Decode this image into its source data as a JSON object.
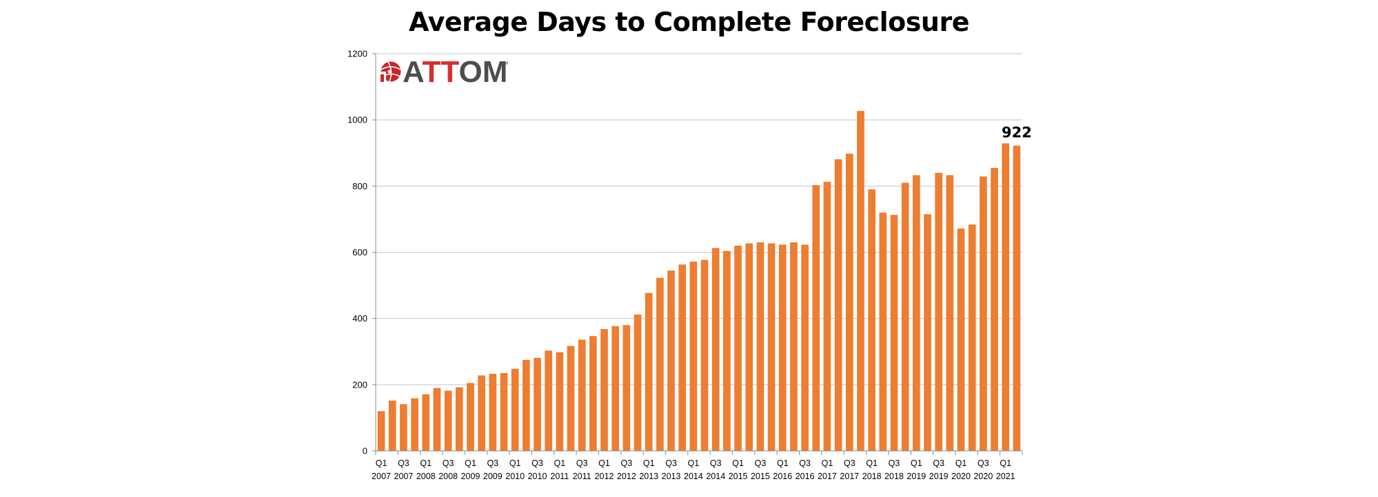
{
  "chart_data": {
    "type": "bar",
    "title": "Average Days to Complete Foreclosure",
    "xlabel": "",
    "ylabel": "",
    "ylim": [
      0,
      1200
    ],
    "yticks": [
      "0",
      "200",
      "400",
      "600",
      "800",
      "1000",
      "1200"
    ],
    "grid": true,
    "legend": "none",
    "bar_color": "#ED7D31",
    "categories": [
      "Q1 2007",
      "Q2 2007",
      "Q3 2007",
      "Q4 2007",
      "Q1 2008",
      "Q2 2008",
      "Q3 2008",
      "Q4 2008",
      "Q1 2009",
      "Q2 2009",
      "Q3 2009",
      "Q4 2009",
      "Q1 2010",
      "Q2 2010",
      "Q3 2010",
      "Q4 2010",
      "Q1 2011",
      "Q2 2011",
      "Q3 2011",
      "Q4 2011",
      "Q1 2012",
      "Q2 2012",
      "Q3 2012",
      "Q4 2012",
      "Q1 2013",
      "Q2 2013",
      "Q3 2013",
      "Q4 2013",
      "Q1 2014",
      "Q2 2014",
      "Q3 2014",
      "Q4 2014",
      "Q1 2015",
      "Q2 2015",
      "Q3 2015",
      "Q4 2015",
      "Q1 2016",
      "Q2 2016",
      "Q3 2016",
      "Q4 2016",
      "Q1 2017",
      "Q2 2017",
      "Q3 2017",
      "Q4 2017",
      "Q1 2018",
      "Q2 2018",
      "Q3 2018",
      "Q4 2018",
      "Q1 2019",
      "Q2 2019",
      "Q3 2019",
      "Q4 2019",
      "Q1 2020",
      "Q2 2020",
      "Q3 2020",
      "Q4 2020",
      "Q1 2021",
      "Q2 2021"
    ],
    "tick_labels": [
      {
        "quarter": "Q1",
        "year": "2007"
      },
      {
        "quarter": "Q3",
        "year": "2007"
      },
      {
        "quarter": "Q1",
        "year": "2008"
      },
      {
        "quarter": "Q3",
        "year": "2008"
      },
      {
        "quarter": "Q1",
        "year": "2009"
      },
      {
        "quarter": "Q3",
        "year": "2009"
      },
      {
        "quarter": "Q1",
        "year": "2010"
      },
      {
        "quarter": "Q3",
        "year": "2010"
      },
      {
        "quarter": "Q1",
        "year": "2011"
      },
      {
        "quarter": "Q3",
        "year": "2011"
      },
      {
        "quarter": "Q1",
        "year": "2012"
      },
      {
        "quarter": "Q3",
        "year": "2012"
      },
      {
        "quarter": "Q1",
        "year": "2013"
      },
      {
        "quarter": "Q3",
        "year": "2013"
      },
      {
        "quarter": "Q1",
        "year": "2014"
      },
      {
        "quarter": "Q3",
        "year": "2014"
      },
      {
        "quarter": "Q1",
        "year": "2015"
      },
      {
        "quarter": "Q3",
        "year": "2015"
      },
      {
        "quarter": "Q1",
        "year": "2016"
      },
      {
        "quarter": "Q3",
        "year": "2016"
      },
      {
        "quarter": "Q1",
        "year": "2017"
      },
      {
        "quarter": "Q3",
        "year": "2017"
      },
      {
        "quarter": "Q1",
        "year": "2018"
      },
      {
        "quarter": "Q3",
        "year": "2018"
      },
      {
        "quarter": "Q1",
        "year": "2019"
      },
      {
        "quarter": "Q3",
        "year": "2019"
      },
      {
        "quarter": "Q1",
        "year": "2020"
      },
      {
        "quarter": "Q3",
        "year": "2020"
      },
      {
        "quarter": "Q1",
        "year": "2021"
      }
    ],
    "values": [
      120,
      152,
      141,
      159,
      171,
      190,
      182,
      192,
      205,
      228,
      233,
      235,
      248,
      275,
      281,
      303,
      298,
      317,
      336,
      347,
      368,
      377,
      380,
      412,
      477,
      523,
      545,
      563,
      572,
      577,
      613,
      604,
      620,
      627,
      630,
      627,
      623,
      630,
      623,
      803,
      813,
      881,
      898,
      1027,
      790,
      720,
      713,
      810,
      833,
      715,
      840,
      833,
      672,
      684,
      829,
      855,
      929,
      922
    ],
    "data_labels": [
      {
        "category": "Q2 2021",
        "text": "922"
      }
    ]
  },
  "logo": {
    "text_a": "A",
    "text_tt": "TT",
    "text_om": "OM",
    "trademark": "™",
    "icon": "attom-globe-icon",
    "colors": {
      "gray": "#4D4D4D",
      "red": "#D32F2F"
    }
  }
}
